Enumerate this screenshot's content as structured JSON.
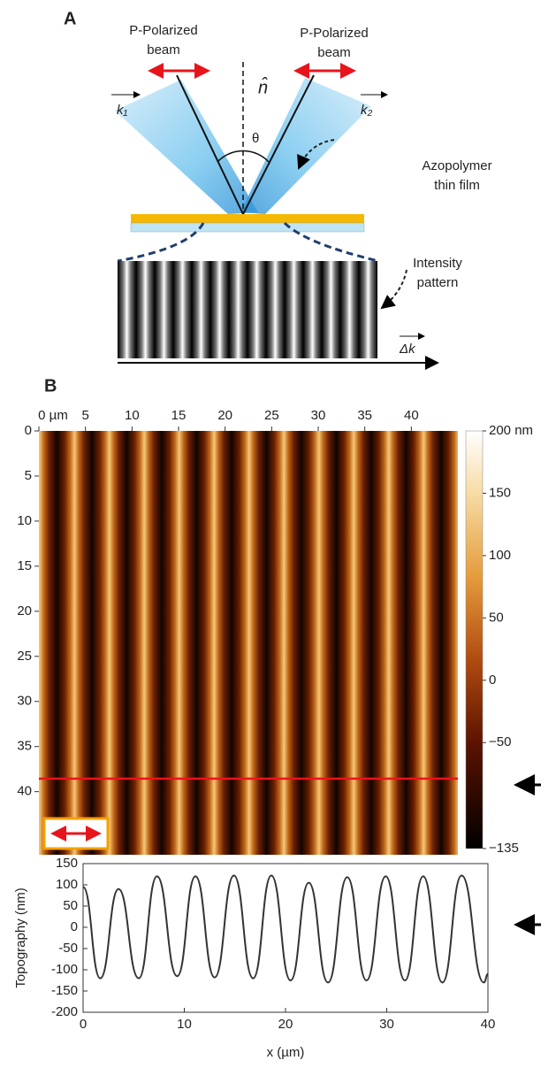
{
  "diagram": {
    "panel_label": "A",
    "left_beam": [
      "P-Polarized",
      "beam"
    ],
    "right_beam": [
      "P-Polarized",
      "beam"
    ],
    "normal": "n̂",
    "k1": "k₁",
    "k2": "k₂",
    "angle": "θ",
    "film": [
      "Azopolymer",
      "thin film"
    ],
    "pattern": [
      "Intensity",
      "pattern"
    ],
    "delta_k": "Δk"
  },
  "panel_b_label": "B",
  "chart_data": [
    {
      "type": "heatmap",
      "xlim": [
        0,
        45
      ],
      "xticks": [
        {
          "value": 0,
          "label": "0 µm"
        },
        5,
        10,
        15,
        20,
        25,
        30,
        35,
        40
      ],
      "ylim": [
        0,
        47
      ],
      "yticks": [
        0,
        5,
        10,
        15,
        20,
        25,
        30,
        35,
        40
      ],
      "clim": [
        -135,
        200
      ],
      "cticks": [
        {
          "value": 200,
          "label": "200 nm"
        },
        150,
        100,
        50,
        0,
        {
          "value": -50,
          "label": "−50"
        },
        {
          "value": -135,
          "label": "−135"
        }
      ]
    },
    {
      "type": "line",
      "xlabel": "x (µm)",
      "ylabel": "Topography (nm)",
      "x": [
        0,
        1.7,
        3.5,
        5.5,
        7.3,
        9.3,
        11.1,
        13.0,
        14.9,
        16.8,
        18.6,
        20.5,
        22.3,
        24.2,
        26.1,
        28.0,
        29.9,
        31.8,
        33.6,
        35.5,
        37.4,
        39.6,
        40
      ],
      "values": [
        95,
        -120,
        90,
        -120,
        120,
        -115,
        120,
        -118,
        122,
        -120,
        122,
        -125,
        105,
        -130,
        118,
        -125,
        120,
        -125,
        120,
        -130,
        122,
        -130,
        -110
      ],
      "color": "#333333",
      "xlim": [
        0,
        40
      ],
      "xticks": [
        0,
        10,
        20,
        30,
        40
      ],
      "ylim": [
        -200,
        150
      ],
      "yticks": [
        150,
        100,
        50,
        0,
        -50,
        -100,
        -150,
        -200
      ]
    }
  ]
}
